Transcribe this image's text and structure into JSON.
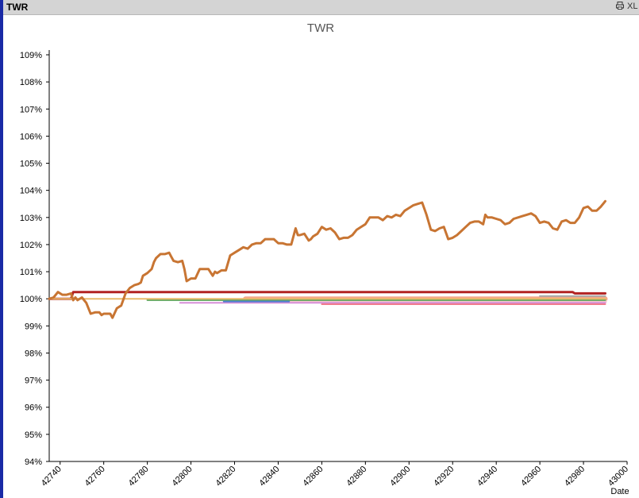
{
  "window": {
    "title": "TWR",
    "print_icon": "printer-icon",
    "xl_label": "XL"
  },
  "colors": {
    "window_border": "#1a2aa6",
    "titlebar_bg": "#d4d4d4"
  },
  "chart_data": {
    "type": "line",
    "title": "TWR",
    "xlabel": "Date",
    "ylabel": "",
    "xlim": [
      42735,
      43000
    ],
    "ylim": [
      94,
      109
    ],
    "x_ticks": [
      "42740",
      "42760",
      "42780",
      "42800",
      "42820",
      "42840",
      "42860",
      "42880",
      "42900",
      "42920",
      "42940",
      "42960",
      "42980",
      "43000"
    ],
    "y_ticks": [
      "94%",
      "95%",
      "96%",
      "97%",
      "98%",
      "99%",
      "100%",
      "101%",
      "102%",
      "103%",
      "104%",
      "105%",
      "106%",
      "107%",
      "108%",
      "109%"
    ],
    "grid": false,
    "series": [
      {
        "color": "#c87533",
        "width": 3,
        "x": [
          42735,
          42737,
          42739,
          42741,
          42743,
          42745,
          42746,
          42747,
          42748,
          42750,
          42752,
          42754,
          42756,
          42758,
          42759,
          42760,
          42762,
          42763,
          42764,
          42766,
          42768,
          42770,
          42772,
          42774,
          42776,
          42777,
          42778,
          42780,
          42782,
          42783,
          42784,
          42786,
          42788,
          42790,
          42791,
          42792,
          42794,
          42796,
          42797,
          42798,
          42800,
          42802,
          42804,
          42806,
          42808,
          42810,
          42811,
          42812,
          42814,
          42816,
          42818,
          42820,
          42822,
          42824,
          42826,
          42828,
          42830,
          42832,
          42834,
          42836,
          42838,
          42840,
          42842,
          42844,
          42846,
          42848,
          42849,
          42850,
          42852,
          42854,
          42855,
          42856,
          42858,
          42860,
          42862,
          42864,
          42866,
          42868,
          42870,
          42872,
          42874,
          42876,
          42878,
          42880,
          42882,
          42884,
          42886,
          42888,
          42890,
          42892,
          42894,
          42896,
          42898,
          42900,
          42902,
          42904,
          42906,
          42908,
          42910,
          42912,
          42914,
          42916,
          42918,
          42920,
          42922,
          42924,
          42926,
          42928,
          42930,
          42932,
          42934,
          42935,
          42936,
          42938,
          42940,
          42942,
          42944,
          42946,
          42948,
          42950,
          42952,
          42954,
          42956,
          42958,
          42960,
          42962,
          42964,
          42966,
          42968,
          42970,
          42972,
          42974,
          42976,
          42978,
          42980,
          42982,
          42984,
          42986,
          42988,
          42990
        ],
        "y": [
          100.0,
          100.05,
          100.25,
          100.15,
          100.15,
          100.2,
          99.95,
          100.05,
          99.95,
          100.05,
          99.85,
          99.45,
          99.5,
          99.5,
          99.4,
          99.45,
          99.45,
          99.45,
          99.3,
          99.65,
          99.75,
          100.2,
          100.4,
          100.5,
          100.55,
          100.6,
          100.85,
          100.95,
          101.1,
          101.35,
          101.5,
          101.65,
          101.65,
          101.7,
          101.55,
          101.4,
          101.35,
          101.4,
          101.1,
          100.65,
          100.75,
          100.75,
          101.1,
          101.1,
          101.1,
          100.85,
          101.0,
          100.95,
          101.05,
          101.05,
          101.6,
          101.7,
          101.8,
          101.9,
          101.85,
          102.0,
          102.05,
          102.05,
          102.2,
          102.2,
          102.2,
          102.05,
          102.05,
          102.0,
          102.0,
          102.6,
          102.35,
          102.35,
          102.4,
          102.15,
          102.2,
          102.3,
          102.4,
          102.65,
          102.55,
          102.6,
          102.45,
          102.2,
          102.25,
          102.25,
          102.35,
          102.55,
          102.65,
          102.75,
          103.0,
          103.0,
          103.0,
          102.9,
          103.05,
          103.0,
          103.1,
          103.05,
          103.25,
          103.35,
          103.45,
          103.5,
          103.55,
          103.1,
          102.55,
          102.5,
          102.6,
          102.65,
          102.2,
          102.25,
          102.35,
          102.5,
          102.65,
          102.8,
          102.85,
          102.85,
          102.75,
          103.1,
          103.0,
          103.0,
          102.95,
          102.9,
          102.75,
          102.8,
          102.95,
          103.0,
          103.05,
          103.1,
          103.15,
          103.05,
          102.8,
          102.85,
          102.8,
          102.6,
          102.55,
          102.85,
          102.9,
          102.8,
          102.8,
          103.0,
          103.35,
          103.4,
          103.25,
          103.25,
          103.4,
          103.6
        ]
      },
      {
        "color": "#b22222",
        "width": 3,
        "x": [
          42735,
          42745,
          42746,
          42750,
          42975,
          42976,
          42990
        ],
        "y": [
          100.0,
          100.0,
          100.25,
          100.25,
          100.25,
          100.2,
          100.2
        ]
      },
      {
        "color": "#f5a88a",
        "width": 6,
        "x": [
          42825,
          42990
        ],
        "y": [
          100.0,
          100.0
        ]
      },
      {
        "color": "#f6c6cf",
        "width": 4,
        "x": [
          42825,
          42990
        ],
        "y": [
          99.9,
          99.9
        ]
      },
      {
        "color": "#d78fd8",
        "width": 2,
        "x": [
          42795,
          42990
        ],
        "y": [
          99.85,
          99.85
        ]
      },
      {
        "color": "#f07c8c",
        "width": 2,
        "x": [
          42860,
          42990
        ],
        "y": [
          99.8,
          99.8
        ]
      },
      {
        "color": "#5aa55a",
        "width": 2,
        "x": [
          42780,
          42990
        ],
        "y": [
          99.95,
          99.95
        ]
      },
      {
        "color": "#4f7fd0",
        "width": 2,
        "x": [
          42815,
          42845
        ],
        "y": [
          99.9,
          99.9
        ]
      },
      {
        "color": "#a7a7a7",
        "width": 2,
        "x": [
          42960,
          42990
        ],
        "y": [
          100.1,
          100.1
        ]
      },
      {
        "color": "#e8b96a",
        "width": 2,
        "x": [
          42735,
          42990
        ],
        "y": [
          100.0,
          100.0
        ]
      }
    ]
  }
}
